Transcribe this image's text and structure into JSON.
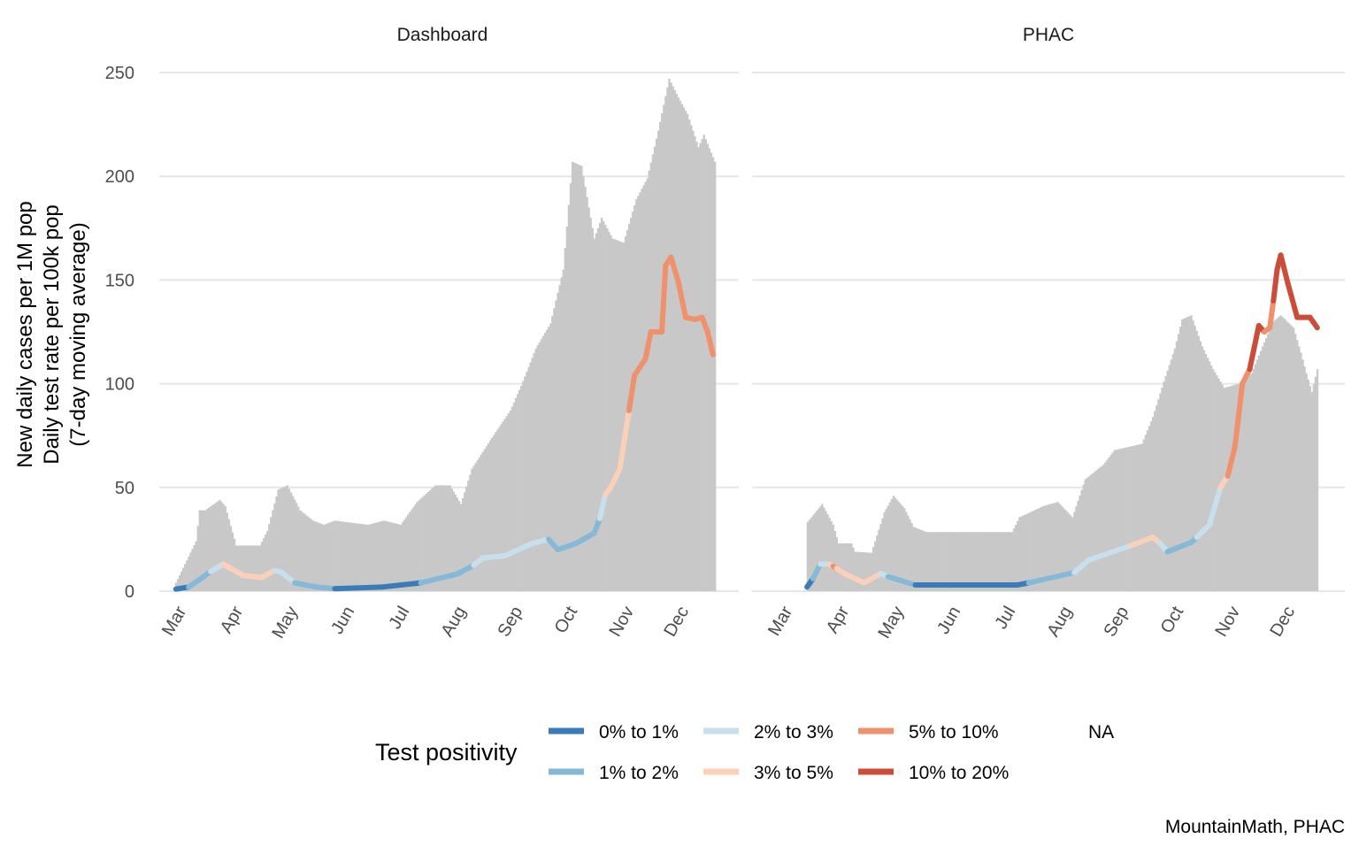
{
  "chart_data": {
    "type": "bar+line",
    "ylabel_lines": [
      "New daily cases per 1M pop",
      "Daily test rate per 100k pop",
      "(7-day moving average)"
    ],
    "xlabel": "",
    "ylim": [
      0,
      250
    ],
    "y_ticks": [
      "0",
      "50",
      "100",
      "150",
      "200",
      "250"
    ],
    "y_tick_values": [
      0,
      50,
      100,
      150,
      200,
      250
    ],
    "x_unit": "days since Mar 1",
    "x_ticks": [
      {
        "label": "Mar",
        "day": 0
      },
      {
        "label": "Apr",
        "day": 31
      },
      {
        "label": "May",
        "day": 61
      },
      {
        "label": "Jun",
        "day": 92
      },
      {
        "label": "Jul",
        "day": 122
      },
      {
        "label": "Aug",
        "day": 153
      },
      {
        "label": "Sep",
        "day": 184
      },
      {
        "label": "Oct",
        "day": 214
      },
      {
        "label": "Nov",
        "day": 245
      },
      {
        "label": "Dec",
        "day": 275
      }
    ],
    "grid": "horizontal",
    "legend": {
      "title": "Test positivity",
      "placement": "bottom",
      "items": [
        {
          "key": "c01",
          "label": "0% to 1%",
          "color": "#3a7bb8"
        },
        {
          "key": "c12",
          "label": "1% to 2%",
          "color": "#86b8d8"
        },
        {
          "key": "c23",
          "label": "2% to 3%",
          "color": "#c8dfee"
        },
        {
          "key": "c35",
          "label": "3% to 5%",
          "color": "#fbd0b9"
        },
        {
          "key": "c510",
          "label": "5% to 10%",
          "color": "#ef916d"
        },
        {
          "key": "c1020",
          "label": "10% to 20%",
          "color": "#cc4c3a"
        },
        {
          "key": "na",
          "label": "NA",
          "color": "#ffffff"
        }
      ]
    },
    "bar_color": "#c8c8c8",
    "caption": "MountainMath, PHAC",
    "panels": [
      {
        "title": "Dashboard",
        "cases_per_1M": [
          [
            -3,
            4
          ],
          [
            8,
            24
          ],
          [
            10,
            39
          ],
          [
            13,
            39
          ],
          [
            21,
            44
          ],
          [
            24,
            41
          ],
          [
            30,
            22
          ],
          [
            35,
            22
          ],
          [
            43,
            22
          ],
          [
            47,
            29
          ],
          [
            53,
            49
          ],
          [
            58,
            51
          ],
          [
            65,
            39
          ],
          [
            72,
            34
          ],
          [
            78,
            32
          ],
          [
            84,
            34
          ],
          [
            102,
            32
          ],
          [
            111,
            34
          ],
          [
            120,
            32
          ],
          [
            129,
            43
          ],
          [
            139,
            51
          ],
          [
            147,
            51
          ],
          [
            153,
            42
          ],
          [
            159,
            59
          ],
          [
            170,
            74
          ],
          [
            180,
            87
          ],
          [
            186,
            99
          ],
          [
            194,
            117
          ],
          [
            202,
            129
          ],
          [
            209,
            155
          ],
          [
            214,
            207
          ],
          [
            219,
            205
          ],
          [
            226,
            170
          ],
          [
            230,
            180
          ],
          [
            236,
            170
          ],
          [
            242,
            168
          ],
          [
            249,
            189
          ],
          [
            255,
            199
          ],
          [
            261,
            222
          ],
          [
            267,
            247
          ],
          [
            272,
            238
          ],
          [
            277,
            230
          ],
          [
            283,
            214
          ],
          [
            286,
            220
          ],
          [
            292,
            207
          ]
        ],
        "tests_per_100k": [
          [
            -3,
            1,
            "c01"
          ],
          [
            4,
            2,
            "c12"
          ],
          [
            13,
            7.5,
            "c12"
          ],
          [
            16,
            9.5,
            "c23"
          ],
          [
            23,
            13,
            "c35"
          ],
          [
            34,
            7.5,
            "c35"
          ],
          [
            44,
            6.6,
            "c35"
          ],
          [
            51,
            10,
            "c23"
          ],
          [
            55,
            9,
            "c23"
          ],
          [
            62,
            4,
            "c12"
          ],
          [
            74,
            2,
            "c12"
          ],
          [
            84,
            1.2,
            "c01"
          ],
          [
            110,
            2,
            "c01"
          ],
          [
            131,
            4,
            "c12"
          ],
          [
            151,
            8.3,
            "c12"
          ],
          [
            160,
            12.5,
            "c23"
          ],
          [
            165,
            16,
            "c23"
          ],
          [
            177,
            17,
            "c23"
          ],
          [
            192,
            23,
            "c23"
          ],
          [
            201,
            25,
            "c12"
          ],
          [
            206,
            20,
            "c12"
          ],
          [
            216,
            23,
            "c12"
          ],
          [
            226,
            28,
            "c12"
          ],
          [
            229,
            35,
            "c23"
          ],
          [
            232,
            46.5,
            "c35"
          ],
          [
            235,
            50,
            "c35"
          ],
          [
            240,
            59,
            "c35"
          ],
          [
            245,
            87,
            "c510"
          ],
          [
            248,
            104,
            "c510"
          ],
          [
            254,
            112,
            "c510"
          ],
          [
            257,
            125,
            "c510"
          ],
          [
            263,
            125,
            "c510"
          ],
          [
            265,
            157,
            "c510"
          ],
          [
            268,
            161,
            "c510"
          ],
          [
            272,
            149,
            "c510"
          ],
          [
            276,
            132,
            "c510"
          ],
          [
            281,
            131,
            "c510"
          ],
          [
            285,
            132,
            "c510"
          ],
          [
            288,
            125,
            "c510"
          ],
          [
            291,
            114,
            "c510"
          ]
        ]
      },
      {
        "title": "PHAC",
        "cases_per_1M": [
          [
            10.7,
            33
          ],
          [
            19,
            42
          ],
          [
            25,
            32
          ],
          [
            28,
            23
          ],
          [
            35,
            23
          ],
          [
            37,
            19
          ],
          [
            46,
            18.5
          ],
          [
            53,
            38
          ],
          [
            58,
            46
          ],
          [
            64,
            40
          ],
          [
            69,
            31
          ],
          [
            76,
            28.5
          ],
          [
            105,
            28.5
          ],
          [
            123,
            28.5
          ],
          [
            127,
            35.6
          ],
          [
            140,
            41
          ],
          [
            148,
            43
          ],
          [
            156,
            35.6
          ],
          [
            163,
            54
          ],
          [
            173,
            61
          ],
          [
            179,
            68
          ],
          [
            194,
            71
          ],
          [
            200,
            84
          ],
          [
            206,
            101
          ],
          [
            212,
            117
          ],
          [
            216,
            131
          ],
          [
            221,
            133
          ],
          [
            227,
            118
          ],
          [
            233,
            107
          ],
          [
            239,
            98
          ],
          [
            247,
            100
          ],
          [
            254,
            105
          ],
          [
            260,
            118
          ],
          [
            266,
            130
          ],
          [
            270,
            133
          ],
          [
            277,
            127
          ],
          [
            281,
            115
          ],
          [
            284,
            105
          ],
          [
            287,
            96
          ],
          [
            290,
            107
          ]
        ],
        "tests_per_100k": [
          [
            10.7,
            2,
            "c01"
          ],
          [
            14,
            6,
            "c12"
          ],
          [
            18,
            13,
            "c23"
          ],
          [
            23,
            13,
            "c35"
          ],
          [
            25,
            12,
            "c510"
          ],
          [
            27,
            11,
            "c35"
          ],
          [
            31,
            8.5,
            "c35"
          ],
          [
            42,
            4,
            "c35"
          ],
          [
            51,
            8.5,
            "c23"
          ],
          [
            55,
            7,
            "c12"
          ],
          [
            70,
            3,
            "c01"
          ],
          [
            126,
            3,
            "c01"
          ],
          [
            132,
            4,
            "c12"
          ],
          [
            152,
            8,
            "c12"
          ],
          [
            157,
            9,
            "c23"
          ],
          [
            165,
            15,
            "c23"
          ],
          [
            188,
            22,
            "c35"
          ],
          [
            200,
            26,
            "c35"
          ],
          [
            204,
            23,
            "c23"
          ],
          [
            208,
            19,
            "c12"
          ],
          [
            221,
            23.5,
            "c12"
          ],
          [
            224,
            26,
            "c23"
          ],
          [
            231,
            32,
            "c23"
          ],
          [
            237,
            50,
            "c35"
          ],
          [
            241,
            55.5,
            "c510"
          ],
          [
            245,
            70,
            "c510"
          ],
          [
            249,
            100,
            "c510"
          ],
          [
            253,
            107,
            "c1020"
          ],
          [
            258,
            128,
            "c1020"
          ],
          [
            261,
            125,
            "c510"
          ],
          [
            264,
            127,
            "c510"
          ],
          [
            266,
            140,
            "c1020"
          ],
          [
            268,
            155,
            "c1020"
          ],
          [
            270,
            162,
            "c1020"
          ],
          [
            274,
            148,
            "c1020"
          ],
          [
            279,
            132,
            "c1020"
          ],
          [
            283,
            132,
            "c1020"
          ],
          [
            286,
            132,
            "c1020"
          ],
          [
            290,
            127,
            "c1020"
          ]
        ]
      }
    ]
  }
}
